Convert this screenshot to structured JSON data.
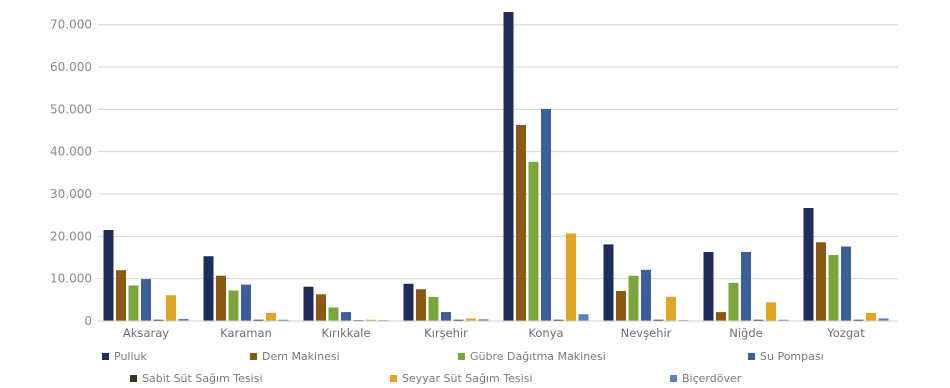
{
  "chart_data": {
    "type": "bar",
    "title": "",
    "xlabel": "",
    "ylabel": "",
    "ylim": [
      0,
      73000
    ],
    "yticks": [
      0,
      10000,
      20000,
      30000,
      40000,
      50000,
      60000,
      70000
    ],
    "ytick_labels": [
      "0",
      "10.000",
      "20.000",
      "30.000",
      "40.000",
      "50.000",
      "60.000",
      "70.000"
    ],
    "grid": true,
    "legend_position": "bottom",
    "categories": [
      "Aksaray",
      "Karaman",
      "Kırıkkale",
      "Kırşehir",
      "Konya",
      "Nevşehir",
      "Niğde",
      "Yozgat"
    ],
    "series": [
      {
        "name": "Pulluk",
        "color": "#1f2d5a",
        "values": [
          21500,
          15300,
          8100,
          8800,
          73000,
          18100,
          16300,
          26700
        ]
      },
      {
        "name": "Dem Makinesi",
        "color": "#8a5a12",
        "values": [
          12000,
          10700,
          6300,
          7500,
          46300,
          7100,
          2100,
          18600
        ]
      },
      {
        "name": "Gübre Dağıtma Makinesi",
        "color": "#7ba63e",
        "values": [
          8400,
          7200,
          3200,
          5700,
          37600,
          10700,
          9000,
          15600
        ]
      },
      {
        "name": "Su Pompası",
        "color": "#3d5f99",
        "values": [
          9900,
          8600,
          2100,
          2100,
          50100,
          12100,
          16300,
          17600
        ]
      },
      {
        "name": "Sabit Süt Sağım Tesisi",
        "color": "#2e3b1c",
        "values": [
          300,
          300,
          200,
          300,
          300,
          300,
          300,
          300
        ]
      },
      {
        "name": "Seyyar Süt Sağım Tesisi",
        "color": "#e0a624",
        "values": [
          6100,
          1900,
          300,
          600,
          20700,
          5700,
          4400,
          1900
        ]
      },
      {
        "name": "Biçerdöver",
        "color": "#5a82bd",
        "values": [
          500,
          300,
          200,
          400,
          1600,
          200,
          300,
          600
        ]
      }
    ]
  }
}
